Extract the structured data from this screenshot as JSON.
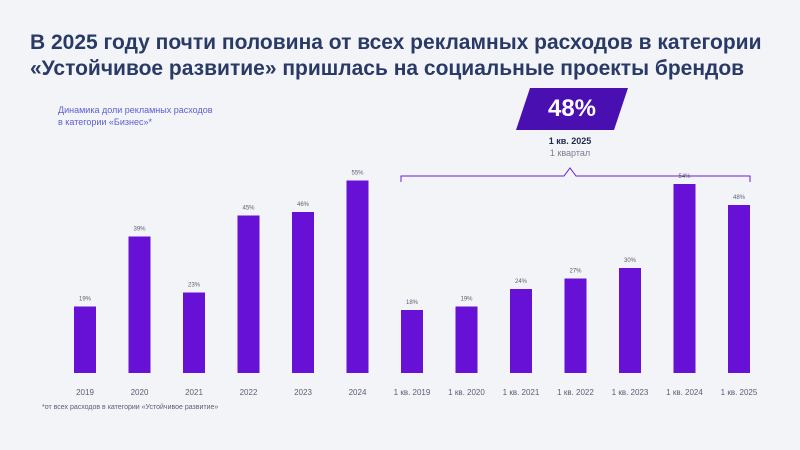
{
  "title": {
    "line1": "В 2025 году почти половина от всех рекламных расходов в категории",
    "line2": "«Устойчивое развитие» пришлась на социальные проекты брендов"
  },
  "subtitle": {
    "line1": "Динамика доли рекламных расходов",
    "line2": "в категории «Бизнес»*"
  },
  "callout": {
    "value": "48%",
    "label": "1 кв. 2025",
    "sublabel": "1 квартал"
  },
  "footnote": "*от всех расходов в категории «Устойчивое развитие»",
  "colors": {
    "bar": "#6711d6",
    "badge": "#4a0fb0",
    "axis_text": "#5a5f70",
    "bracket": "#6a1fd0"
  },
  "chart_data": {
    "type": "bar",
    "categories": [
      "2019",
      "2020",
      "2021",
      "2022",
      "2023",
      "2024",
      "1 кв. 2019",
      "1 кв. 2020",
      "1 кв. 2021",
      "1 кв. 2022",
      "1 кв. 2023",
      "1 кв. 2024",
      "1 кв. 2025"
    ],
    "values": [
      19,
      39,
      23,
      45,
      46,
      55,
      18,
      19,
      24,
      27,
      30,
      54,
      48
    ],
    "value_labels": [
      "19%",
      "39%",
      "23%",
      "45%",
      "46%",
      "55%",
      "18%",
      "19%",
      "24%",
      "27%",
      "30%",
      "54%",
      "48%"
    ],
    "ylim": [
      0,
      60
    ],
    "grid": false
  }
}
